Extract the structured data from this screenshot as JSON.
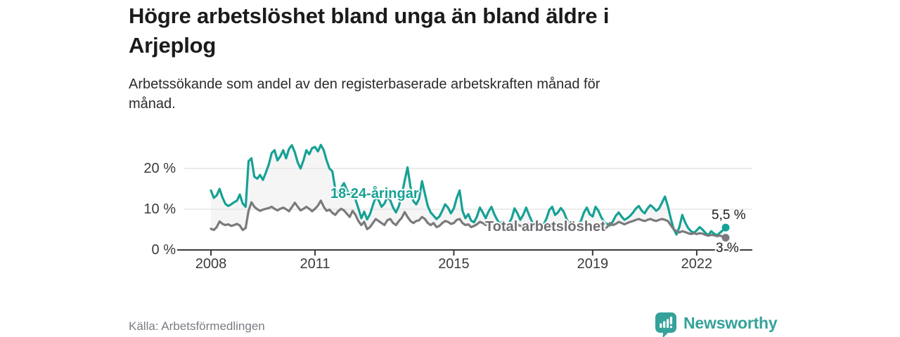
{
  "header": {
    "title_lines": [
      "Högre arbetslöshet bland unga än bland äldre i",
      "Arjeplog"
    ],
    "subtitle_lines": [
      "Arbetssökande som andel av den registerbaserade arbetskraften månad för",
      "månad."
    ]
  },
  "footer": {
    "source": "Källa: Arbetsförmedlingen",
    "brand": "Newsworthy"
  },
  "colors": {
    "young_line": "#16a195",
    "total_line": "#7a7a7c",
    "between_fill": "#f5f5f6",
    "grid": "#e0e0e0",
    "axis": "#3b3b3b",
    "brand_teal": "#35a29a"
  },
  "chart_data": {
    "type": "line",
    "title": "Högre arbetslöshet bland unga än bland äldre i Arjeplog",
    "subtitle": "Arbetssökande som andel av den registerbaserade arbetskraften månad för månad.",
    "x_unit": "month",
    "x_start_year": 2008,
    "x_ticks": [
      2008,
      2011,
      2015,
      2019,
      2022
    ],
    "y_ticks": [
      {
        "v": 0,
        "label": "0 %"
      },
      {
        "v": 10,
        "label": "10 %"
      },
      {
        "v": 20,
        "label": "20 %"
      }
    ],
    "ylim": [
      0,
      27
    ],
    "grid": true,
    "fill_between_series": true,
    "series": [
      {
        "name": "18-24-åringar",
        "color": "#16a195",
        "end_label": "5,5 %",
        "end_value": 5.5,
        "values": [
          14.6,
          12.8,
          13.4,
          15.0,
          12.9,
          11.3,
          10.8,
          11.2,
          11.7,
          12.1,
          13.6,
          11.4,
          10.6,
          21.8,
          22.5,
          18.0,
          17.5,
          18.4,
          17.2,
          19.0,
          21.0,
          23.8,
          24.5,
          22.0,
          23.0,
          24.5,
          22.5,
          24.8,
          25.7,
          24.0,
          21.5,
          20.0,
          22.0,
          24.5,
          23.5,
          25.0,
          25.3,
          24.2,
          25.8,
          24.5,
          22.0,
          20.0,
          19.3,
          15.0,
          14.2,
          15.3,
          16.4,
          14.8,
          13.2,
          14.6,
          12.4,
          10.2,
          7.8,
          9.4,
          7.5,
          8.8,
          11.0,
          13.0,
          12.2,
          10.6,
          11.4,
          13.0,
          12.2,
          10.4,
          9.2,
          10.8,
          13.5,
          17.0,
          20.3,
          15.5,
          12.0,
          11.2,
          12.6,
          16.9,
          13.8,
          10.8,
          9.2,
          8.4,
          7.6,
          8.2,
          9.6,
          11.2,
          10.4,
          9.0,
          10.2,
          12.8,
          14.6,
          9.6,
          7.8,
          8.8,
          7.2,
          6.8,
          8.2,
          10.4,
          9.2,
          7.8,
          9.4,
          10.6,
          8.8,
          7.4,
          6.4,
          7.0,
          5.9,
          6.4,
          7.8,
          10.2,
          9.0,
          7.4,
          8.6,
          10.4,
          8.6,
          7.0,
          6.0,
          6.6,
          5.7,
          6.2,
          7.6,
          9.8,
          10.6,
          8.6,
          9.2,
          10.3,
          9.4,
          7.6,
          6.4,
          6.0,
          5.6,
          6.2,
          7.2,
          9.2,
          10.4,
          8.8,
          8.2,
          10.6,
          9.6,
          8.0,
          6.8,
          6.4,
          6.0,
          7.0,
          8.4,
          9.2,
          8.2,
          7.4,
          7.8,
          8.4,
          9.2,
          10.2,
          10.8,
          9.6,
          9.0,
          10.2,
          11.0,
          10.4,
          9.6,
          10.2,
          11.6,
          13.1,
          10.8,
          7.8,
          5.2,
          3.8,
          5.6,
          8.6,
          6.8,
          5.4,
          4.6,
          4.2,
          4.8,
          5.6,
          5.0,
          4.2,
          3.6,
          4.6,
          4.0,
          3.6,
          4.2,
          4.8,
          5.5
        ]
      },
      {
        "name": "Total arbetslöshet",
        "color": "#7a7a7c",
        "end_label": "3 %",
        "end_value": 3.0,
        "values": [
          5.2,
          4.9,
          5.6,
          7.0,
          6.4,
          6.1,
          6.3,
          5.9,
          6.1,
          6.4,
          6.0,
          4.9,
          5.4,
          9.6,
          11.7,
          10.6,
          10.0,
          9.6,
          9.9,
          10.1,
          10.3,
          10.6,
          10.1,
          9.7,
          10.1,
          10.4,
          10.0,
          9.5,
          10.5,
          11.6,
          10.6,
          9.7,
          10.1,
          10.6,
          10.1,
          9.5,
          10.1,
          10.9,
          12.1,
          10.6,
          9.6,
          9.9,
          9.1,
          8.6,
          9.5,
          10.1,
          9.7,
          8.9,
          8.1,
          9.6,
          8.6,
          7.1,
          6.1,
          6.9,
          5.1,
          5.6,
          6.6,
          7.6,
          7.1,
          6.6,
          6.1,
          7.3,
          7.6,
          6.6,
          6.1,
          7.1,
          7.9,
          9.3,
          8.1,
          7.1,
          6.6,
          7.1,
          7.3,
          8.1,
          7.6,
          6.6,
          6.1,
          6.6,
          5.6,
          5.9,
          6.6,
          7.1,
          6.9,
          6.4,
          6.6,
          7.4,
          7.6,
          6.6,
          6.1,
          6.3,
          5.6,
          5.9,
          6.3,
          6.9,
          6.6,
          6.1,
          6.4,
          6.9,
          6.6,
          6.1,
          5.6,
          5.9,
          5.3,
          5.6,
          6.1,
          6.6,
          6.3,
          5.9,
          6.1,
          6.6,
          6.3,
          5.9,
          5.6,
          6.1,
          5.4,
          5.7,
          6.1,
          6.4,
          6.1,
          5.7,
          5.9,
          6.3,
          6.1,
          5.6,
          5.3,
          5.6,
          5.1,
          5.4,
          5.9,
          6.1,
          5.9,
          5.5,
          5.6,
          6.1,
          5.9,
          5.5,
          5.1,
          5.6,
          6.6,
          6.1,
          6.4,
          6.9,
          6.6,
          6.3,
          6.6,
          6.9,
          7.1,
          7.4,
          7.6,
          7.3,
          7.1,
          7.4,
          7.6,
          7.3,
          7.1,
          7.4,
          7.6,
          7.4,
          7.1,
          6.1,
          5.1,
          4.6,
          4.3,
          4.6,
          4.4,
          4.1,
          3.9,
          4.1,
          3.9,
          4.1,
          4.0,
          3.7,
          3.5,
          3.7,
          3.6,
          3.4,
          3.5,
          3.3,
          3.0
        ]
      }
    ]
  }
}
